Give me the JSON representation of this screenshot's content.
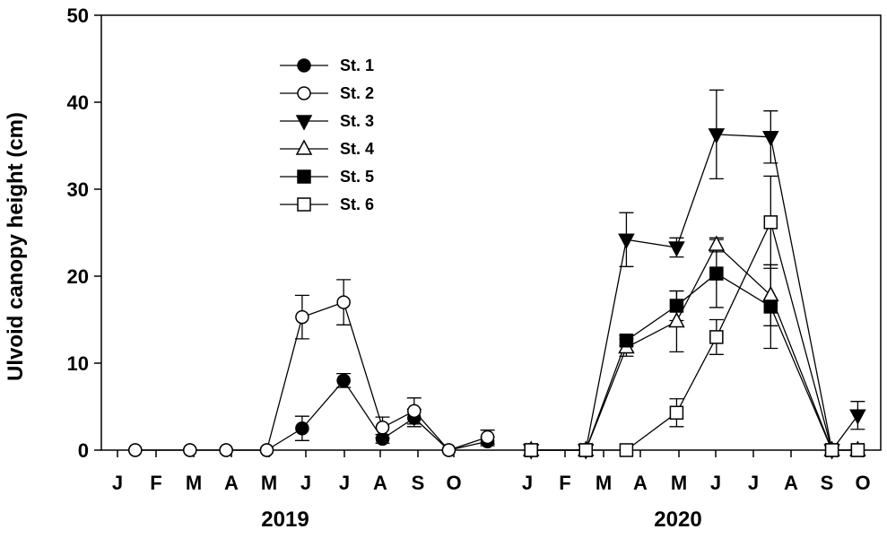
{
  "chart_data": {
    "type": "line",
    "title": "",
    "ylabel": "Ulvoid canopy height (cm)",
    "ylim": [
      0,
      50
    ],
    "yticks": [
      0,
      10,
      20,
      30,
      40,
      50
    ],
    "x_axis": {
      "groups": [
        {
          "label": "2019",
          "months": [
            "J",
            "F",
            "M",
            "A",
            "M",
            "J",
            "J",
            "A",
            "S",
            "O"
          ]
        },
        {
          "label": "2020",
          "months": [
            "J",
            "F",
            "M",
            "A",
            "M",
            "J",
            "J",
            "A",
            "S",
            "O"
          ]
        }
      ]
    },
    "legend_position": "top-left inside",
    "series": [
      {
        "name": "St. 1",
        "marker": "circle",
        "fill": "filled",
        "points": [
          {
            "x": 2019.08,
            "y": 0
          },
          {
            "x": 2019.2,
            "y": 0
          },
          {
            "x": 2019.28,
            "y": 0
          },
          {
            "x": 2019.37,
            "y": 0
          },
          {
            "x": 2019.45,
            "y": 2.5,
            "err": 1.4
          },
          {
            "x": 2019.54,
            "y": 8,
            "err": 0.8
          },
          {
            "x": 2019.63,
            "y": 1.3,
            "err": 0.5
          },
          {
            "x": 2019.7,
            "y": 3.7,
            "err": 1.0
          },
          {
            "x": 2019.78,
            "y": 0
          },
          {
            "x": 2019.87,
            "y": 1.0,
            "err": 0.5
          }
        ]
      },
      {
        "name": "St. 2",
        "marker": "circle",
        "fill": "open",
        "points": [
          {
            "x": 2019.08,
            "y": 0
          },
          {
            "x": 2019.2,
            "y": 0
          },
          {
            "x": 2019.28,
            "y": 0
          },
          {
            "x": 2019.37,
            "y": 0
          },
          {
            "x": 2019.45,
            "y": 15.3,
            "err": 2.5
          },
          {
            "x": 2019.54,
            "y": 17,
            "err": 2.6
          },
          {
            "x": 2019.63,
            "y": 2.6,
            "err": 1.2
          },
          {
            "x": 2019.7,
            "y": 4.5,
            "err": 1.5
          },
          {
            "x": 2019.78,
            "y": 0
          },
          {
            "x": 2019.87,
            "y": 1.5,
            "err": 0.8
          }
        ]
      },
      {
        "name": "St. 3",
        "marker": "triangle-down",
        "fill": "filled",
        "points": [
          {
            "x": 2020.05,
            "y": 0
          },
          {
            "x": 2020.17,
            "y": 0
          },
          {
            "x": 2020.26,
            "y": 24.2,
            "err": 3.1
          },
          {
            "x": 2020.37,
            "y": 23.3,
            "err": 1.1
          },
          {
            "x": 2020.46,
            "y": 36.3,
            "err": 5.1
          },
          {
            "x": 2020.58,
            "y": 36.0,
            "err": 3.0
          },
          {
            "x": 2020.72,
            "y": 0
          },
          {
            "x": 2020.78,
            "y": 4.0,
            "err": 1.6
          }
        ]
      },
      {
        "name": "St. 4",
        "marker": "triangle-up",
        "fill": "open",
        "points": [
          {
            "x": 2020.05,
            "y": 0
          },
          {
            "x": 2020.17,
            "y": 0
          },
          {
            "x": 2020.26,
            "y": 11.8,
            "err": 1.0
          },
          {
            "x": 2020.37,
            "y": 14.8,
            "err": 3.5
          },
          {
            "x": 2020.46,
            "y": 23.6,
            "err": 0.8
          },
          {
            "x": 2020.58,
            "y": 17.8,
            "err": 3.5
          },
          {
            "x": 2020.72,
            "y": 0
          },
          {
            "x": 2020.78,
            "y": 0
          }
        ]
      },
      {
        "name": "St. 5",
        "marker": "square",
        "fill": "filled",
        "points": [
          {
            "x": 2020.05,
            "y": 0
          },
          {
            "x": 2020.17,
            "y": 0
          },
          {
            "x": 2020.26,
            "y": 12.6,
            "err": 0.6
          },
          {
            "x": 2020.37,
            "y": 16.6,
            "err": 1.7
          },
          {
            "x": 2020.46,
            "y": 20.3,
            "err": 3.9
          },
          {
            "x": 2020.58,
            "y": 16.5,
            "err": 4.8
          },
          {
            "x": 2020.72,
            "y": 0
          },
          {
            "x": 2020.78,
            "y": 0
          }
        ]
      },
      {
        "name": "St. 6",
        "marker": "square",
        "fill": "open",
        "points": [
          {
            "x": 2020.05,
            "y": 0
          },
          {
            "x": 2020.17,
            "y": 0
          },
          {
            "x": 2020.26,
            "y": 0
          },
          {
            "x": 2020.37,
            "y": 4.3,
            "err": 1.6
          },
          {
            "x": 2020.46,
            "y": 13.0,
            "err": 2.0
          },
          {
            "x": 2020.58,
            "y": 26.2,
            "err": 5.3
          },
          {
            "x": 2020.72,
            "y": 0
          },
          {
            "x": 2020.78,
            "y": 0
          }
        ]
      }
    ]
  }
}
